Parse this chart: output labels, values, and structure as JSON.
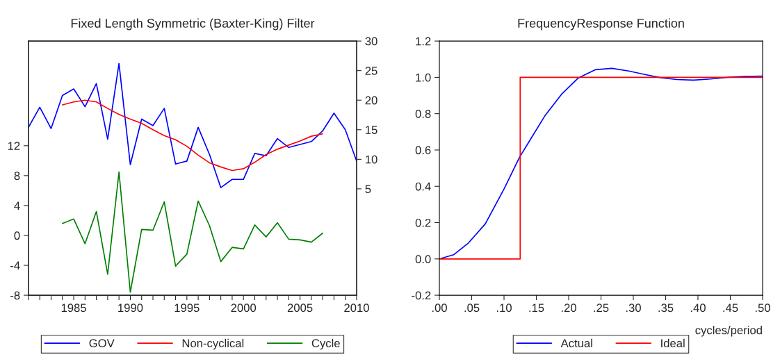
{
  "chart_data": [
    {
      "type": "line",
      "title": "Fixed Length Symmetric (Baxter-King) Filter",
      "x": [
        1981,
        1982,
        1983,
        1984,
        1985,
        1986,
        1987,
        1988,
        1989,
        1990,
        1991,
        1992,
        1993,
        1994,
        1995,
        1996,
        1997,
        1998,
        1999,
        2000,
        2001,
        2002,
        2003,
        2004,
        2005,
        2006,
        2007,
        2008,
        2009,
        2010
      ],
      "series": [
        {
          "name": "GOV",
          "color": "#0000ff",
          "axis": "y2",
          "values": [
            15.4,
            18.8,
            15.2,
            20.8,
            21.9,
            18.9,
            22.8,
            13.4,
            26.2,
            9.1,
            16.8,
            15.7,
            18.6,
            9.2,
            9.7,
            15.4,
            10.8,
            5.2,
            6.6,
            6.6,
            11.0,
            10.6,
            13.5,
            12.0,
            12.5,
            13.0,
            14.8,
            17.8,
            15.0,
            9.7
          ]
        },
        {
          "name": "Non-cyclical",
          "color": "#ff0000",
          "axis": "y2",
          "values": [
            null,
            null,
            null,
            19.2,
            19.7,
            20.0,
            19.7,
            18.6,
            17.6,
            16.8,
            16.1,
            15.0,
            14.0,
            13.3,
            12.2,
            10.7,
            9.4,
            8.7,
            8.1,
            8.4,
            9.5,
            10.8,
            11.7,
            12.4,
            13.1,
            13.9,
            14.3,
            null,
            null,
            null
          ]
        },
        {
          "name": "Cycle",
          "color": "#008000",
          "values": [
            null,
            null,
            null,
            1.6,
            2.2,
            -1.1,
            3.2,
            -5.2,
            8.5,
            -7.6,
            0.8,
            0.7,
            4.5,
            -4.1,
            -2.5,
            4.6,
            1.3,
            -3.5,
            -1.6,
            -1.8,
            1.4,
            -0.2,
            1.7,
            -0.5,
            -0.6,
            -0.9,
            0.3,
            null,
            null,
            null
          ]
        }
      ],
      "xlim": [
        1981,
        2010
      ],
      "xticks": [
        {
          "value": 1981,
          "label": null
        },
        {
          "value": 1982,
          "label": null
        },
        {
          "value": 1983,
          "label": null
        },
        {
          "value": 1984,
          "label": null
        },
        1985,
        {
          "value": 1986,
          "label": null
        },
        {
          "value": 1987,
          "label": null
        },
        {
          "value": 1988,
          "label": null
        },
        {
          "value": 1989,
          "label": null
        },
        1990,
        {
          "value": 1991,
          "label": null
        },
        {
          "value": 1992,
          "label": null
        },
        {
          "value": 1993,
          "label": null
        },
        {
          "value": 1994,
          "label": null
        },
        1995,
        {
          "value": 1996,
          "label": null
        },
        {
          "value": 1997,
          "label": null
        },
        {
          "value": 1998,
          "label": null
        },
        {
          "value": 1999,
          "label": null
        },
        2000,
        {
          "value": 2001,
          "label": null
        },
        {
          "value": 2002,
          "label": null
        },
        {
          "value": 2003,
          "label": null
        },
        {
          "value": 2004,
          "label": null
        },
        2005,
        {
          "value": 2006,
          "label": null
        },
        {
          "value": 2007,
          "label": null
        },
        {
          "value": 2008,
          "label": null
        },
        {
          "value": 2009,
          "label": null
        },
        2010
      ],
      "ylim": [
        -8,
        26
      ],
      "yticks": [
        -8,
        -4,
        0,
        4,
        8,
        12
      ],
      "y2lim": [
        -13,
        30
      ],
      "y2ticks": [
        5,
        10,
        15,
        20,
        25,
        30
      ],
      "grid": false,
      "legend": "bottom"
    },
    {
      "type": "line",
      "title": "FrequencyResponse Function",
      "xlabel": "cycles/period",
      "series": [
        {
          "name": "Actual",
          "color": "#0000ff",
          "x": [
            0,
            0.022,
            0.045,
            0.071,
            0.1,
            0.124,
            0.141,
            0.163,
            0.189,
            0.215,
            0.241,
            0.267,
            0.293,
            0.319,
            0.341,
            0.367,
            0.393,
            0.419,
            0.445,
            0.471,
            0.5
          ],
          "values": [
            0,
            0.023,
            0.088,
            0.193,
            0.385,
            0.56,
            0.659,
            0.787,
            0.907,
            0.997,
            1.042,
            1.05,
            1.035,
            1.015,
            0.999,
            0.988,
            0.985,
            0.991,
            1.0,
            1.005,
            1.007
          ]
        },
        {
          "name": "Ideal",
          "color": "#ff0000",
          "x": [
            0,
            0.125,
            0.125,
            0.5
          ],
          "values": [
            0,
            0,
            1,
            1
          ]
        }
      ],
      "xlim": [
        0,
        0.5
      ],
      "xticks": [
        {
          "value": 0,
          "label": ".00"
        },
        {
          "value": 0.05,
          "label": ".05"
        },
        {
          "value": 0.1,
          "label": ".10"
        },
        {
          "value": 0.15,
          "label": ".15"
        },
        {
          "value": 0.2,
          "label": ".20"
        },
        {
          "value": 0.25,
          "label": ".25"
        },
        {
          "value": 0.3,
          "label": ".30"
        },
        {
          "value": 0.35,
          "label": ".35"
        },
        {
          "value": 0.4,
          "label": ".40"
        },
        {
          "value": 0.45,
          "label": ".45"
        },
        {
          "value": 0.5,
          "label": ".50"
        }
      ],
      "ylim": [
        -0.2,
        1.2
      ],
      "yticks": [
        {
          "value": -0.2,
          "label": "-0.2"
        },
        {
          "value": 0,
          "label": "0.0"
        },
        {
          "value": 0.2,
          "label": "0.2"
        },
        {
          "value": 0.4,
          "label": "0.4"
        },
        {
          "value": 0.6,
          "label": "0.6"
        },
        {
          "value": 0.8,
          "label": "0.8"
        },
        {
          "value": 1.0,
          "label": "1.0"
        },
        {
          "value": 1.2,
          "label": "1.2"
        }
      ],
      "grid": false,
      "legend": "bottom"
    }
  ]
}
